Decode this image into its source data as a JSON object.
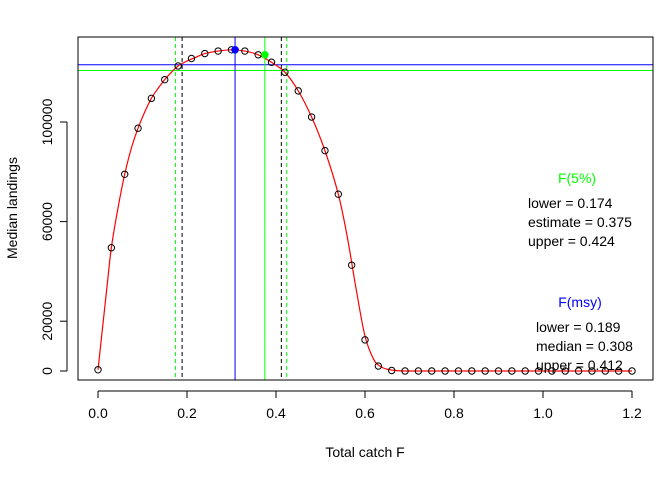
{
  "chart_data": {
    "type": "scatter",
    "xlabel": "Total catch F",
    "ylabel": "Median landings",
    "xlim": [
      0,
      1.2
    ],
    "ylim": [
      0,
      130000
    ],
    "x_ticks": [
      0.0,
      0.2,
      0.4,
      0.6,
      0.8,
      1.0,
      1.2
    ],
    "x_tick_labels": [
      "0.0",
      "0.2",
      "0.4",
      "0.6",
      "0.8",
      "1.0",
      "1.2"
    ],
    "y_ticks": [
      0,
      20000,
      60000,
      100000
    ],
    "y_tick_labels": [
      "0",
      "20000",
      "60000",
      "100000"
    ],
    "series": [
      {
        "kind": "points",
        "color": "#000000",
        "x": [
          0.0,
          0.03,
          0.06,
          0.09,
          0.12,
          0.15,
          0.18,
          0.21,
          0.24,
          0.27,
          0.3,
          0.33,
          0.36,
          0.39,
          0.42,
          0.45,
          0.48,
          0.51,
          0.54,
          0.57,
          0.6,
          0.63,
          0.66,
          0.69,
          0.72,
          0.75,
          0.78,
          0.81,
          0.84,
          0.87,
          0.9,
          0.93,
          0.96,
          0.99,
          1.02,
          1.05,
          1.08,
          1.11,
          1.14,
          1.17,
          1.2
        ],
        "y": [
          500,
          49500,
          79000,
          97500,
          109500,
          117000,
          122500,
          125500,
          127500,
          128500,
          129000,
          128500,
          127000,
          124000,
          120000,
          112500,
          102000,
          88500,
          71000,
          42500,
          12500,
          2000,
          200,
          0,
          0,
          0,
          0,
          0,
          0,
          0,
          0,
          0,
          0,
          0,
          0,
          0,
          0,
          0,
          0,
          0,
          0
        ]
      },
      {
        "kind": "smooth-line",
        "color": "#ff0000",
        "x": [
          0.0,
          0.01,
          0.02,
          0.03,
          0.045,
          0.06,
          0.075,
          0.09,
          0.105,
          0.12,
          0.135,
          0.15,
          0.165,
          0.18,
          0.2,
          0.22,
          0.24,
          0.27,
          0.3,
          0.33,
          0.36,
          0.39,
          0.42,
          0.45,
          0.48,
          0.51,
          0.54,
          0.56,
          0.58,
          0.6,
          0.62,
          0.635,
          0.65,
          0.665,
          0.68,
          0.7,
          0.75,
          0.8,
          0.9,
          1.0,
          1.1,
          1.2
        ],
        "y": [
          500,
          17000,
          33500,
          49500,
          65500,
          79000,
          89500,
          97500,
          104000,
          109500,
          113500,
          117000,
          120000,
          122500,
          124500,
          126000,
          127500,
          128500,
          129000,
          128500,
          127000,
          124000,
          120000,
          112500,
          102000,
          88500,
          71000,
          54000,
          33000,
          14000,
          4500,
          1800,
          700,
          250,
          50,
          0,
          0,
          0,
          0,
          0,
          0,
          0
        ]
      }
    ],
    "fmsy": {
      "label": "F(msy)",
      "color": "#0000ff",
      "lower_text": "lower = 0.189",
      "median_text": "median = 0.308",
      "upper_text": "upper = 0.412",
      "lower": 0.189,
      "median": 0.308,
      "upper": 0.412,
      "median_point_y": 129000,
      "hline_y": 123000
    },
    "f5": {
      "label": "F(5%)",
      "color": "#00ff00",
      "lower_text": "lower = 0.174",
      "estimate_text": "estimate = 0.375",
      "upper_text": "upper = 0.424",
      "lower": 0.174,
      "estimate": 0.375,
      "upper": 0.424,
      "estimate_point_y": 127000,
      "hline_y": 120700
    }
  }
}
